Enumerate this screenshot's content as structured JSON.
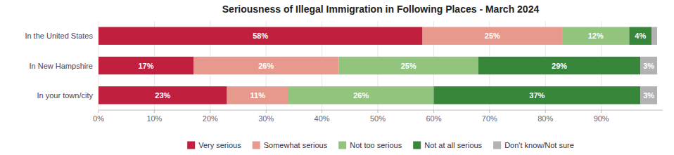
{
  "chart_data": {
    "type": "bar",
    "orientation": "horizontal",
    "stacked": true,
    "title": "Seriousness of Illegal Immigration in Following Places - March 2024",
    "categories": [
      "In the United States",
      "In New Hampshire",
      "In your town/city"
    ],
    "series": [
      {
        "name": "Very serious",
        "color": "#c0203e",
        "values": [
          58,
          17,
          23
        ],
        "value_labels": [
          "58%",
          "17%",
          "23%"
        ]
      },
      {
        "name": "Somewhat serious",
        "color": "#e8998d",
        "values": [
          25,
          26,
          11
        ],
        "value_labels": [
          "25%",
          "26%",
          "11%"
        ]
      },
      {
        "name": "Not too serious",
        "color": "#93c47d",
        "values": [
          12,
          25,
          26
        ],
        "value_labels": [
          "12%",
          "25%",
          "26%"
        ]
      },
      {
        "name": "Not at all serious",
        "color": "#38863a",
        "values": [
          4,
          29,
          37
        ],
        "value_labels": [
          "4%",
          "29%",
          "37%"
        ]
      },
      {
        "name": "Don't know/Not sure",
        "color": "#b2b2b2",
        "values": [
          1,
          3,
          3
        ],
        "value_labels": [
          null,
          "3%",
          "3%"
        ]
      }
    ],
    "xlim": [
      0,
      101
    ],
    "xticks": [
      {
        "value": 0,
        "label": "0%"
      },
      {
        "value": 10,
        "label": "10%"
      },
      {
        "value": 20,
        "label": "20%"
      },
      {
        "value": 30,
        "label": "30%"
      },
      {
        "value": 40,
        "label": "40%"
      },
      {
        "value": 50,
        "label": "50%"
      },
      {
        "value": 60,
        "label": "60%"
      },
      {
        "value": 70,
        "label": "70%"
      },
      {
        "value": 80,
        "label": "80%"
      },
      {
        "value": 90,
        "label": "90%"
      }
    ],
    "grid": true,
    "data_labels": true,
    "legend": "bottom"
  }
}
